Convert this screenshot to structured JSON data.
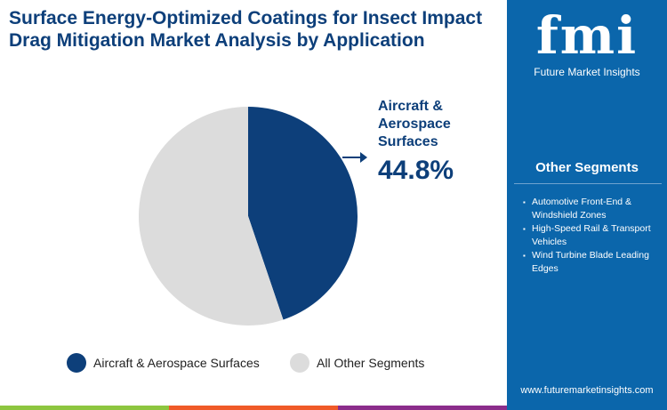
{
  "title": "Surface Energy-Optimized Coatings for Insect Impact Drag Mitigation Market Analysis by Application",
  "brand": {
    "logo_text": "fmi",
    "name": "Future Market Insights",
    "url": "www.futuremarketinsights.com"
  },
  "other_segments": {
    "heading": "Other Segments",
    "items": [
      "Automotive Front-End & Windshield Zones",
      "High-Speed Rail & Transport Vehicles",
      "Wind Turbine Blade Leading Edges"
    ]
  },
  "callout": {
    "label": "Aircraft & Aerospace Surfaces",
    "value": "44.8%"
  },
  "colors": {
    "primary": "#0d3f7a",
    "other": "#dcdcdc",
    "panel": "#0b66ab",
    "bar": [
      "#8dc63f",
      "#f05a28",
      "#8b2d8b"
    ]
  },
  "chart_data": {
    "type": "pie",
    "series": [
      {
        "name": "Aircraft & Aerospace Surfaces",
        "value": 44.8
      },
      {
        "name": "All Other Segments",
        "value": 55.2
      }
    ],
    "legend": "bottom"
  }
}
